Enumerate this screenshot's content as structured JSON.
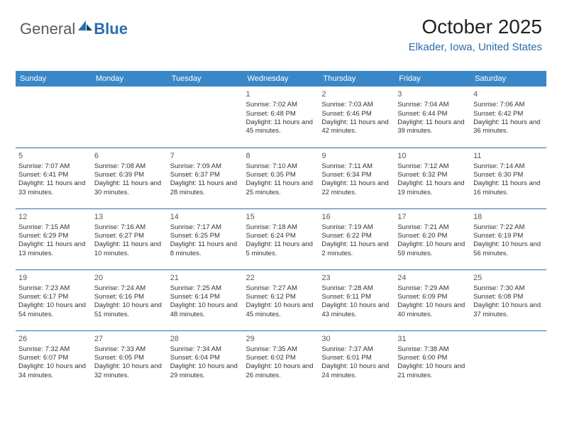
{
  "logo": {
    "general": "General",
    "blue": "Blue"
  },
  "header": {
    "month_title": "October 2025",
    "location": "Elkader, Iowa, United States"
  },
  "colors": {
    "header_bg": "#3a87c8",
    "header_text": "#ffffff",
    "rule": "#2a6db0",
    "logo_blue": "#2a6db0",
    "logo_general": "#5a5a5a",
    "body_text": "#333333",
    "daynum": "#5a5a5a"
  },
  "weekdays": [
    "Sunday",
    "Monday",
    "Tuesday",
    "Wednesday",
    "Thursday",
    "Friday",
    "Saturday"
  ],
  "weeks": [
    [
      null,
      null,
      null,
      {
        "n": "1",
        "sr": "Sunrise: 7:02 AM",
        "ss": "Sunset: 6:48 PM",
        "dl": "Daylight: 11 hours and 45 minutes."
      },
      {
        "n": "2",
        "sr": "Sunrise: 7:03 AM",
        "ss": "Sunset: 6:46 PM",
        "dl": "Daylight: 11 hours and 42 minutes."
      },
      {
        "n": "3",
        "sr": "Sunrise: 7:04 AM",
        "ss": "Sunset: 6:44 PM",
        "dl": "Daylight: 11 hours and 39 minutes."
      },
      {
        "n": "4",
        "sr": "Sunrise: 7:06 AM",
        "ss": "Sunset: 6:42 PM",
        "dl": "Daylight: 11 hours and 36 minutes."
      }
    ],
    [
      {
        "n": "5",
        "sr": "Sunrise: 7:07 AM",
        "ss": "Sunset: 6:41 PM",
        "dl": "Daylight: 11 hours and 33 minutes."
      },
      {
        "n": "6",
        "sr": "Sunrise: 7:08 AM",
        "ss": "Sunset: 6:39 PM",
        "dl": "Daylight: 11 hours and 30 minutes."
      },
      {
        "n": "7",
        "sr": "Sunrise: 7:09 AM",
        "ss": "Sunset: 6:37 PM",
        "dl": "Daylight: 11 hours and 28 minutes."
      },
      {
        "n": "8",
        "sr": "Sunrise: 7:10 AM",
        "ss": "Sunset: 6:35 PM",
        "dl": "Daylight: 11 hours and 25 minutes."
      },
      {
        "n": "9",
        "sr": "Sunrise: 7:11 AM",
        "ss": "Sunset: 6:34 PM",
        "dl": "Daylight: 11 hours and 22 minutes."
      },
      {
        "n": "10",
        "sr": "Sunrise: 7:12 AM",
        "ss": "Sunset: 6:32 PM",
        "dl": "Daylight: 11 hours and 19 minutes."
      },
      {
        "n": "11",
        "sr": "Sunrise: 7:14 AM",
        "ss": "Sunset: 6:30 PM",
        "dl": "Daylight: 11 hours and 16 minutes."
      }
    ],
    [
      {
        "n": "12",
        "sr": "Sunrise: 7:15 AM",
        "ss": "Sunset: 6:29 PM",
        "dl": "Daylight: 11 hours and 13 minutes."
      },
      {
        "n": "13",
        "sr": "Sunrise: 7:16 AM",
        "ss": "Sunset: 6:27 PM",
        "dl": "Daylight: 11 hours and 10 minutes."
      },
      {
        "n": "14",
        "sr": "Sunrise: 7:17 AM",
        "ss": "Sunset: 6:25 PM",
        "dl": "Daylight: 11 hours and 8 minutes."
      },
      {
        "n": "15",
        "sr": "Sunrise: 7:18 AM",
        "ss": "Sunset: 6:24 PM",
        "dl": "Daylight: 11 hours and 5 minutes."
      },
      {
        "n": "16",
        "sr": "Sunrise: 7:19 AM",
        "ss": "Sunset: 6:22 PM",
        "dl": "Daylight: 11 hours and 2 minutes."
      },
      {
        "n": "17",
        "sr": "Sunrise: 7:21 AM",
        "ss": "Sunset: 6:20 PM",
        "dl": "Daylight: 10 hours and 59 minutes."
      },
      {
        "n": "18",
        "sr": "Sunrise: 7:22 AM",
        "ss": "Sunset: 6:19 PM",
        "dl": "Daylight: 10 hours and 56 minutes."
      }
    ],
    [
      {
        "n": "19",
        "sr": "Sunrise: 7:23 AM",
        "ss": "Sunset: 6:17 PM",
        "dl": "Daylight: 10 hours and 54 minutes."
      },
      {
        "n": "20",
        "sr": "Sunrise: 7:24 AM",
        "ss": "Sunset: 6:16 PM",
        "dl": "Daylight: 10 hours and 51 minutes."
      },
      {
        "n": "21",
        "sr": "Sunrise: 7:25 AM",
        "ss": "Sunset: 6:14 PM",
        "dl": "Daylight: 10 hours and 48 minutes."
      },
      {
        "n": "22",
        "sr": "Sunrise: 7:27 AM",
        "ss": "Sunset: 6:12 PM",
        "dl": "Daylight: 10 hours and 45 minutes."
      },
      {
        "n": "23",
        "sr": "Sunrise: 7:28 AM",
        "ss": "Sunset: 6:11 PM",
        "dl": "Daylight: 10 hours and 43 minutes."
      },
      {
        "n": "24",
        "sr": "Sunrise: 7:29 AM",
        "ss": "Sunset: 6:09 PM",
        "dl": "Daylight: 10 hours and 40 minutes."
      },
      {
        "n": "25",
        "sr": "Sunrise: 7:30 AM",
        "ss": "Sunset: 6:08 PM",
        "dl": "Daylight: 10 hours and 37 minutes."
      }
    ],
    [
      {
        "n": "26",
        "sr": "Sunrise: 7:32 AM",
        "ss": "Sunset: 6:07 PM",
        "dl": "Daylight: 10 hours and 34 minutes."
      },
      {
        "n": "27",
        "sr": "Sunrise: 7:33 AM",
        "ss": "Sunset: 6:05 PM",
        "dl": "Daylight: 10 hours and 32 minutes."
      },
      {
        "n": "28",
        "sr": "Sunrise: 7:34 AM",
        "ss": "Sunset: 6:04 PM",
        "dl": "Daylight: 10 hours and 29 minutes."
      },
      {
        "n": "29",
        "sr": "Sunrise: 7:35 AM",
        "ss": "Sunset: 6:02 PM",
        "dl": "Daylight: 10 hours and 26 minutes."
      },
      {
        "n": "30",
        "sr": "Sunrise: 7:37 AM",
        "ss": "Sunset: 6:01 PM",
        "dl": "Daylight: 10 hours and 24 minutes."
      },
      {
        "n": "31",
        "sr": "Sunrise: 7:38 AM",
        "ss": "Sunset: 6:00 PM",
        "dl": "Daylight: 10 hours and 21 minutes."
      },
      null
    ]
  ]
}
